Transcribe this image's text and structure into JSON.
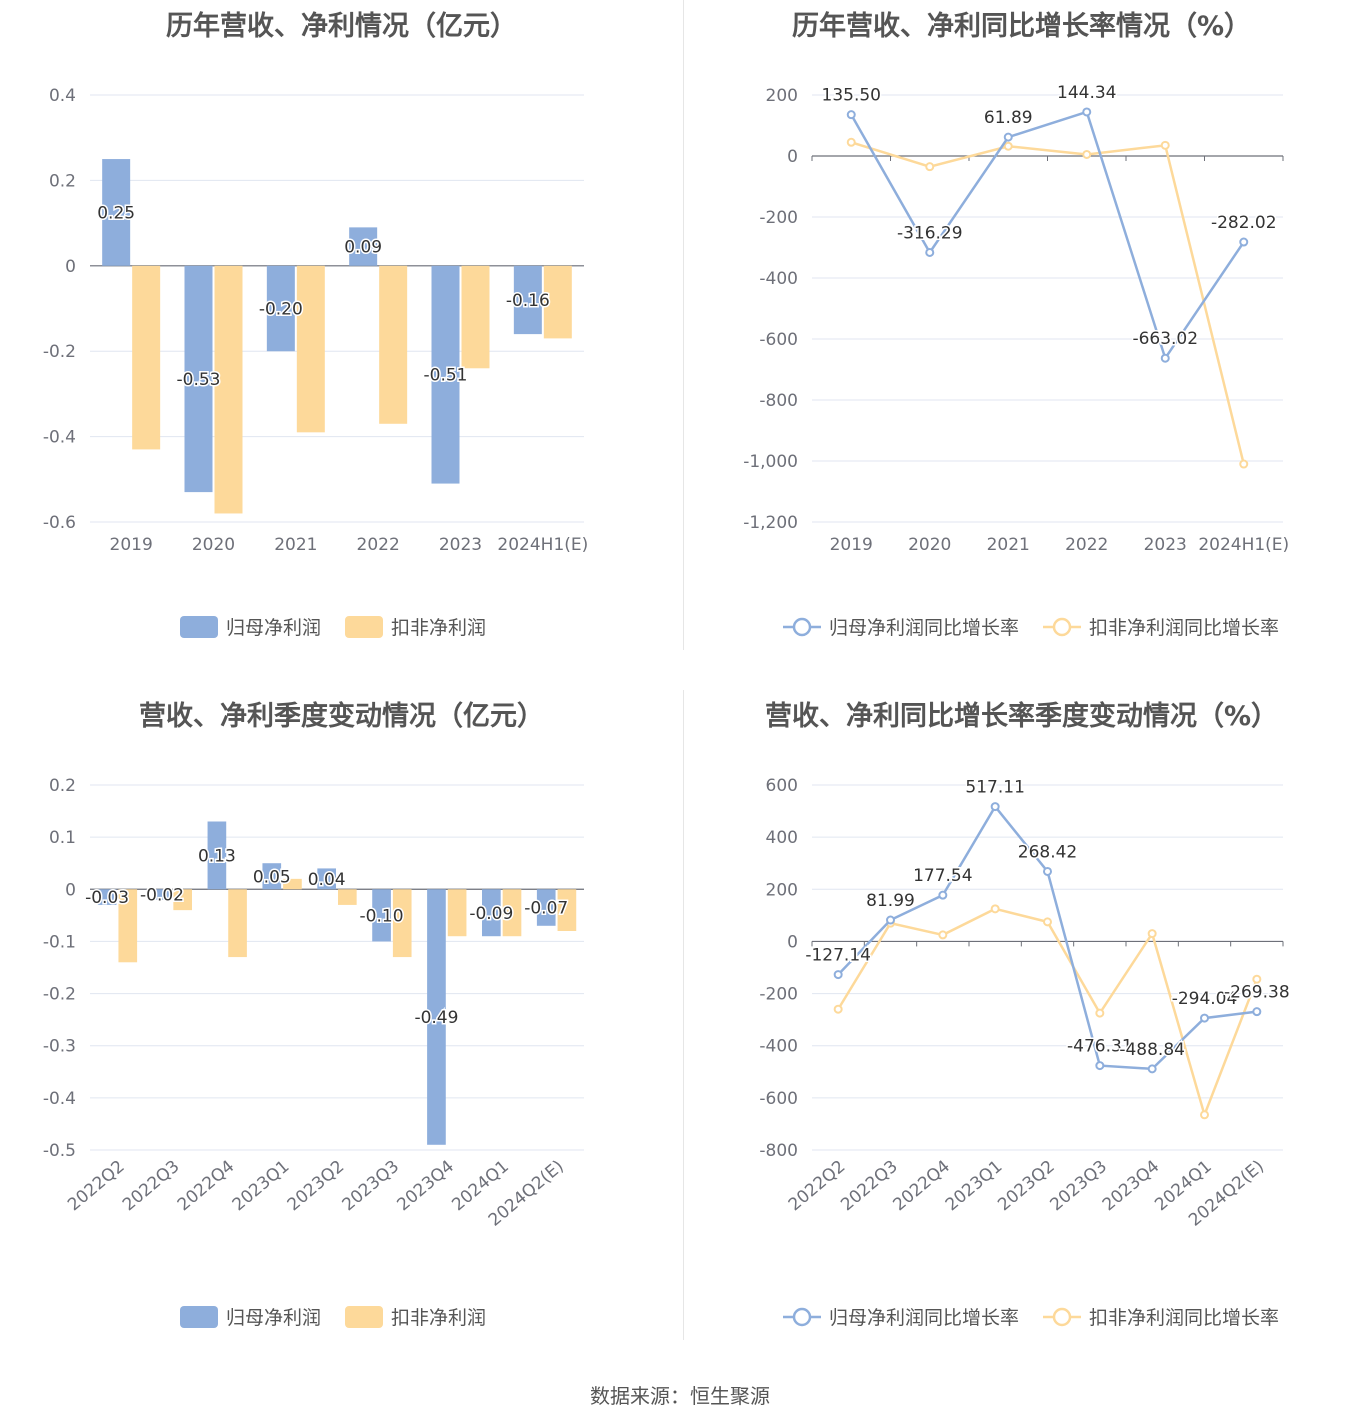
{
  "source": "数据来源：恒生聚源",
  "charts": [
    {
      "id": "annual-profit",
      "title": "历年营收、净利情况（亿元）",
      "type": "bar",
      "categories": [
        "2019",
        "2020",
        "2021",
        "2022",
        "2023",
        "2024H1(E)"
      ],
      "ylim": [
        -0.6,
        0.4
      ],
      "yticks": [
        0.4,
        0.2,
        0,
        -0.2,
        -0.4,
        -0.6
      ],
      "ytick_labels": [
        "0.4",
        "0.2",
        "0",
        "-0.2",
        "-0.4",
        "-0.6"
      ],
      "series": [
        {
          "name": "归母净利润",
          "color": "#8eaedc",
          "values": [
            0.25,
            -0.53,
            -0.2,
            0.09,
            -0.51,
            -0.16
          ],
          "labels": [
            "0.25",
            "-0.53",
            "-0.20",
            "0.09",
            "-0.51",
            "-0.16"
          ]
        },
        {
          "name": "扣非净利润",
          "color": "#fdd99a",
          "values": [
            -0.43,
            -0.58,
            -0.39,
            -0.37,
            -0.24,
            -0.17
          ],
          "labels": []
        }
      ]
    },
    {
      "id": "annual-growth",
      "title": "历年营收、净利同比增长率情况（%）",
      "type": "line",
      "categories": [
        "2019",
        "2020",
        "2021",
        "2022",
        "2023",
        "2024H1(E)"
      ],
      "ylim": [
        -1200,
        200
      ],
      "yticks": [
        200,
        0,
        -200,
        -400,
        -600,
        -800,
        -1000,
        -1200
      ],
      "ytick_labels": [
        "200",
        "0",
        "-200",
        "-400",
        "-600",
        "-800",
        "-1,000",
        "-1,200"
      ],
      "series": [
        {
          "name": "归母净利润同比增长率",
          "color": "#8eaedc",
          "values": [
            135.5,
            -316.29,
            61.89,
            144.34,
            -663.02,
            -282.02
          ],
          "labels": [
            "135.50",
            "-316.29",
            "61.89",
            "144.34",
            "-663.02",
            "-282.02"
          ]
        },
        {
          "name": "扣非净利润同比增长率",
          "color": "#fdd99a",
          "values": [
            45,
            -35,
            32,
            5,
            35,
            -1010
          ],
          "labels": []
        }
      ]
    },
    {
      "id": "quarterly-profit",
      "title": "营收、净利季度变动情况（亿元）",
      "type": "bar",
      "categories": [
        "2022Q2",
        "2022Q3",
        "2022Q4",
        "2023Q1",
        "2023Q2",
        "2023Q3",
        "2023Q4",
        "2024Q1",
        "2024Q2(E)"
      ],
      "ylim": [
        -0.5,
        0.2
      ],
      "yticks": [
        0.2,
        0.1,
        0,
        -0.1,
        -0.2,
        -0.3,
        -0.4,
        -0.5
      ],
      "ytick_labels": [
        "0.2",
        "0.1",
        "0",
        "-0.1",
        "-0.2",
        "-0.3",
        "-0.4",
        "-0.5"
      ],
      "series": [
        {
          "name": "归母净利润",
          "color": "#8eaedc",
          "values": [
            -0.03,
            -0.02,
            0.13,
            0.05,
            0.04,
            -0.1,
            -0.49,
            -0.09,
            -0.07
          ],
          "labels": [
            "-0.03",
            "-0.02",
            "0.13",
            "0.05",
            "0.04",
            "-0.10",
            "-0.49",
            "-0.09",
            "-0.07"
          ]
        },
        {
          "name": "扣非净利润",
          "color": "#fdd99a",
          "values": [
            -0.14,
            -0.04,
            -0.13,
            0.02,
            -0.03,
            -0.13,
            -0.09,
            -0.09,
            -0.08
          ],
          "labels": []
        }
      ]
    },
    {
      "id": "quarterly-growth",
      "title": "营收、净利同比增长率季度变动情况（%）",
      "type": "line",
      "categories": [
        "2022Q2",
        "2022Q3",
        "2022Q4",
        "2023Q1",
        "2023Q2",
        "2023Q3",
        "2023Q4",
        "2024Q1",
        "2024Q2(E)"
      ],
      "ylim": [
        -800,
        600
      ],
      "yticks": [
        600,
        400,
        200,
        0,
        -200,
        -400,
        -600,
        -800
      ],
      "ytick_labels": [
        "600",
        "400",
        "200",
        "0",
        "-200",
        "-400",
        "-600",
        "-800"
      ],
      "series": [
        {
          "name": "归母净利润同比增长率",
          "color": "#8eaedc",
          "values": [
            -127.14,
            81.99,
            177.54,
            517.11,
            268.42,
            -476.31,
            -488.84,
            -294.04,
            -269.38
          ],
          "labels": [
            "-127.14",
            "81.99",
            "177.54",
            "517.11",
            "268.42",
            "-476.31",
            "-488.84",
            "-294.04",
            "-269.38"
          ]
        },
        {
          "name": "扣非净利润同比增长率",
          "color": "#fdd99a",
          "values": [
            -260,
            70,
            25,
            125,
            75,
            -275,
            30,
            -665,
            -145
          ],
          "labels": []
        }
      ]
    }
  ]
}
